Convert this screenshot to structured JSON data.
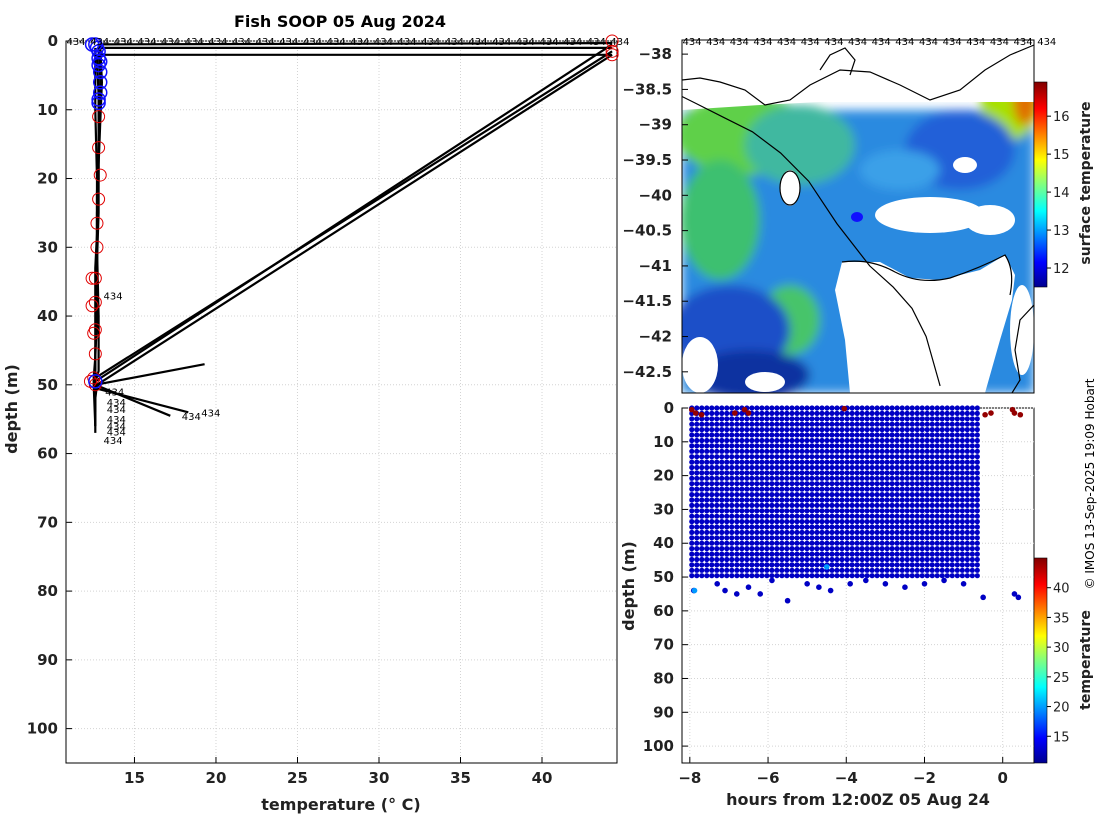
{
  "title": "Fish SOOP 05 Aug 2024",
  "credit": "© IMOS 13-Sep-2025 19:09 Hobart",
  "chart_data": [
    {
      "type": "line",
      "name": "profile-panel",
      "xlabel": "temperature (° C)",
      "ylabel": "depth (m)",
      "xlim": [
        10.8,
        44.6
      ],
      "ylim": [
        105,
        0
      ],
      "xticks": [
        15,
        20,
        25,
        30,
        35,
        40
      ],
      "yticks": [
        0,
        10,
        20,
        30,
        40,
        50,
        60,
        70,
        80,
        90,
        100
      ],
      "top_label": "434",
      "top_label_count": 24,
      "series": [
        {
          "name": "cast",
          "x": [
            44.3,
            12.8,
            12.9,
            12.9,
            12.8,
            12.8,
            12.7,
            12.7,
            12.7,
            12.7,
            12.6,
            12.6,
            12.6,
            12.6,
            12.6
          ],
          "y": [
            1,
            1,
            5,
            10,
            15,
            20,
            25,
            30,
            35,
            40,
            45,
            49,
            52,
            55,
            57
          ]
        },
        {
          "name": "cast",
          "x": [
            44.3,
            12.7,
            12.8,
            12.8,
            12.7,
            12.7,
            12.6,
            12.6,
            12.6,
            12.6,
            12.5,
            12.5,
            12.6
          ],
          "y": [
            2,
            2,
            8,
            15,
            22,
            28,
            33,
            38,
            42,
            46,
            49,
            50,
            56
          ]
        },
        {
          "name": "cast",
          "x": [
            44.3,
            12.9,
            13.0,
            12.9,
            12.8,
            12.8,
            12.7,
            12.7,
            12.6,
            12.6,
            12.6
          ],
          "y": [
            0.3,
            0.5,
            6,
            12,
            18,
            25,
            32,
            40,
            46,
            49,
            51
          ]
        },
        {
          "name": "cast",
          "x": [
            44.3,
            12.6,
            12.8,
            12.8,
            12.7,
            12.7,
            12.6,
            12.6,
            12.6
          ],
          "y": [
            0.5,
            49.5,
            48,
            40,
            30,
            20,
            10,
            3,
            1
          ]
        },
        {
          "name": "cast",
          "x": [
            44.3,
            12.6,
            12.6,
            12.6,
            12.6
          ],
          "y": [
            1.5,
            49,
            50,
            53,
            56
          ]
        },
        {
          "name": "cast",
          "x": [
            44.3,
            12.7,
            12.6,
            12.6
          ],
          "y": [
            2,
            50,
            52,
            54
          ]
        },
        {
          "name": "cast",
          "x": [
            19.3,
            12.6,
            12.6
          ],
          "y": [
            47,
            50,
            51
          ]
        },
        {
          "name": "cast",
          "x": [
            17.2,
            12.6
          ],
          "y": [
            54.5,
            50
          ]
        },
        {
          "name": "cast",
          "x": [
            18.3,
            12.6
          ],
          "y": [
            54,
            50.5
          ]
        }
      ],
      "red_markers": {
        "x": [
          12.8,
          12.8,
          12.9,
          12.8,
          12.7,
          12.7,
          12.6,
          12.6,
          12.6,
          12.6,
          12.5,
          12.4,
          12.4,
          12.3,
          12.5,
          44.3,
          44.3,
          44.3,
          12.6
        ],
        "y": [
          11,
          15.5,
          19.5,
          23,
          26.5,
          30,
          34.5,
          38,
          42,
          45.5,
          49,
          38.5,
          34.5,
          49.5,
          42.5,
          0,
          1.5,
          2,
          50
        ]
      },
      "blue_markers": {
        "x": [
          12.4,
          12.6,
          12.7,
          12.8,
          12.9,
          12.9,
          12.9,
          12.9,
          12.8,
          12.8,
          12.8,
          12.8,
          12.6
        ],
        "y": [
          0.5,
          0.5,
          1,
          1.5,
          3,
          4.5,
          6,
          7.5,
          8.5,
          9,
          3.5,
          2.5,
          49.5
        ]
      },
      "annotations": [
        {
          "text": "434",
          "x": 13.1,
          "y": 37
        },
        {
          "text": "434",
          "x": 13.2,
          "y": 51
        },
        {
          "text": "434",
          "x": 13.3,
          "y": 52.5
        },
        {
          "text": "434",
          "x": 13.3,
          "y": 53.5
        },
        {
          "text": "434",
          "x": 13.3,
          "y": 55
        },
        {
          "text": "434",
          "x": 13.3,
          "y": 56
        },
        {
          "text": "434",
          "x": 13.3,
          "y": 56.8
        },
        {
          "text": "434",
          "x": 13.1,
          "y": 58
        },
        {
          "text": "434",
          "x": 17.9,
          "y": 54.5
        },
        {
          "text": "434",
          "x": 19.1,
          "y": 54
        }
      ]
    },
    {
      "type": "heatmap",
      "name": "sst-map",
      "xlim": [
        141.5,
        149.0
      ],
      "ylim": [
        -42.8,
        -37.8
      ],
      "yticks": [
        -38,
        -38.5,
        -39,
        -39.5,
        -40,
        -40.5,
        -41,
        -41.5,
        -42,
        -42.5
      ],
      "top_label": "434",
      "top_label_count": 16,
      "colorbar": {
        "label": "surface temperature",
        "min": 11.5,
        "max": 16.9,
        "ticks": [
          12,
          13,
          14,
          15,
          16
        ]
      },
      "track": [
        [
          147.0,
          -42.7
        ],
        [
          146.7,
          -42.0
        ],
        [
          146.4,
          -41.6
        ],
        [
          146.0,
          -41.3
        ],
        [
          145.5,
          -41.0
        ],
        [
          144.8,
          -40.4
        ],
        [
          144.2,
          -39.8
        ],
        [
          143.6,
          -39.4
        ],
        [
          143.0,
          -39.1
        ],
        [
          142.4,
          -38.9
        ],
        [
          141.8,
          -38.7
        ],
        [
          141.5,
          -38.6
        ]
      ]
    },
    {
      "type": "scatter",
      "name": "depth-time",
      "xlabel": "hours from 12:00Z 05 Aug 24",
      "ylabel": "depth (m)",
      "xlim": [
        -8.2,
        0.8
      ],
      "ylim": [
        105,
        0
      ],
      "xticks": [
        -8,
        -6,
        -4,
        -2,
        0
      ],
      "yticks": [
        0,
        10,
        20,
        30,
        40,
        50,
        60,
        70,
        80,
        90,
        100
      ],
      "colorbar": {
        "label": "temperature",
        "min": 10.5,
        "max": 45,
        "ticks": [
          15,
          20,
          25,
          30,
          35,
          40
        ]
      },
      "series": [
        {
          "name": "casts",
          "x_start": -7.95,
          "x_end": -0.65,
          "profile_count": 58,
          "depth_range": [
            0,
            50
          ],
          "temperature": 12.8
        },
        {
          "name": "deep points",
          "x": [
            -7.9,
            -7.3,
            -7.1,
            -6.8,
            -6.5,
            -6.2,
            -5.9,
            -5.5,
            -5.0,
            -4.7,
            -4.4,
            -3.9,
            -3.5,
            -3.0,
            -2.5,
            -2.0,
            -1.5,
            -1.0,
            -0.5,
            0.3,
            0.4
          ],
          "y": [
            54,
            52,
            54,
            55,
            53,
            55,
            51,
            57,
            52,
            53,
            54,
            52,
            51,
            52,
            53,
            52,
            51,
            52,
            56,
            55,
            56
          ],
          "temperature": 12.8
        },
        {
          "name": "warm surface points",
          "x": [
            -7.95,
            -7.85,
            -7.7,
            -6.85,
            -6.6,
            -6.5,
            -4.05,
            -0.45,
            -0.3,
            0.25,
            0.3,
            0.45
          ],
          "y": [
            0.5,
            1.5,
            2,
            1.5,
            0.5,
            1.5,
            0.2,
            2,
            1.5,
            0.5,
            1.5,
            2
          ],
          "temperature": 44.3
        },
        {
          "name": "mid point",
          "x": [
            -4.5,
            -7.88
          ],
          "y": [
            47,
            54
          ],
          "temperature": 20.0
        }
      ]
    }
  ]
}
